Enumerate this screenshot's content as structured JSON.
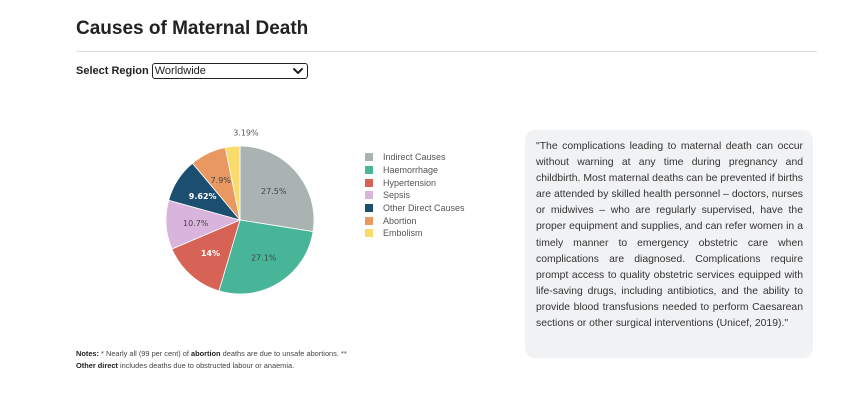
{
  "page": {
    "title": "Causes of Maternal Death"
  },
  "region": {
    "label": "Select Region",
    "selected": "Worldwide"
  },
  "chart_data": {
    "type": "pie",
    "categories": [
      "Indirect Causes",
      "Haemorrhage",
      "Hypertension",
      "Sepsis",
      "Other Direct Causes",
      "Abortion",
      "Embolism"
    ],
    "values": [
      27.5,
      27.1,
      14.0,
      10.7,
      9.62,
      7.9,
      3.19
    ],
    "labels": [
      "27.5%",
      "27.1%",
      "14%",
      "10.7%",
      "9.62%",
      "7.9%",
      "3.19%"
    ],
    "colors": [
      "#a9b4b2",
      "#49b598",
      "#d66356",
      "#d9b5de",
      "#1c4e70",
      "#e89860",
      "#f9da6a"
    ],
    "legend_position": "right"
  },
  "quote": {
    "text": "\"The complications leading to maternal death can occur without warning at any time during pregnancy and childbirth. Most maternal deaths can be prevented if births are attended by skilled health personnel – doctors, nurses or midwives – who are regularly supervised, have the proper equipment and supplies, and can refer women in a timely manner to emergency obstetric care when complications are diagnosed. Complications require prompt access to quality obstetric services equipped with life-saving drugs, including antibiotics, and the ability to provide blood transfusions needed to perform Caesarean sections or other surgical interventions (Unicef, 2019).\""
  },
  "notes": {
    "label": "Notes:",
    "part1": " * Nearly all (99 per cent) of ",
    "term1": "abortion",
    "part2": " deaths are due to unsafe abortions. **",
    "term2": "Other direct",
    "part3": " includes deaths due to obstructed labour or anaemia."
  }
}
